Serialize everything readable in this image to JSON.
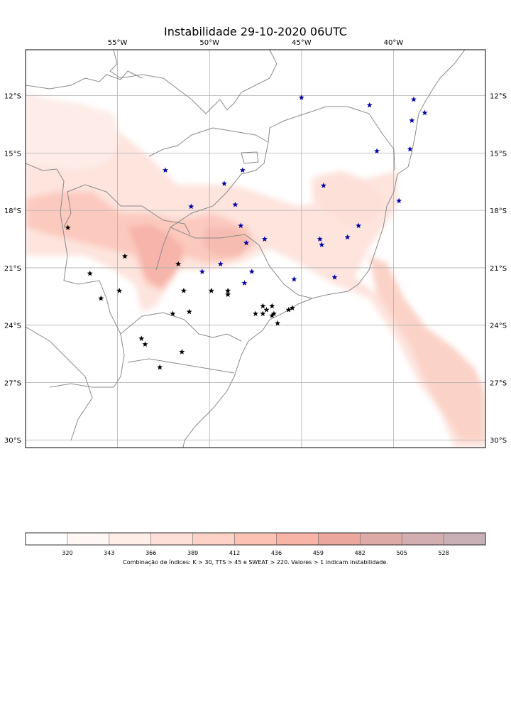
{
  "title": "Instabilidade 29-10-2020 06UTC",
  "map": {
    "lon_range": [
      -60,
      -35
    ],
    "lat_range": [
      -30.4,
      -9.6
    ],
    "lon_ticks": [
      {
        "value": -55,
        "label": "55°W"
      },
      {
        "value": -50,
        "label": "50°W"
      },
      {
        "value": -45,
        "label": "45°W"
      },
      {
        "value": -40,
        "label": "40°W"
      }
    ],
    "lat_ticks": [
      {
        "value": -12,
        "label": "12°S"
      },
      {
        "value": -15,
        "label": "15°S"
      },
      {
        "value": -18,
        "label": "18°S"
      },
      {
        "value": -21,
        "label": "21°S"
      },
      {
        "value": -24,
        "label": "24°S"
      },
      {
        "value": -27,
        "label": "27°S"
      },
      {
        "value": -30,
        "label": "30°S"
      }
    ],
    "colors": {
      "border": "#8a8a8a",
      "grid": "#b0b0b0",
      "star_blue": "#0000aa",
      "star_black": "#000000"
    },
    "stations_blue": [
      [
        -45.0,
        -12.1
      ],
      [
        -41.3,
        -12.5
      ],
      [
        -38.9,
        -12.2
      ],
      [
        -38.3,
        -12.9
      ],
      [
        -39.0,
        -13.3
      ],
      [
        -40.9,
        -14.9
      ],
      [
        -39.1,
        -14.8
      ],
      [
        -52.4,
        -15.9
      ],
      [
        -48.2,
        -15.9
      ],
      [
        -49.2,
        -16.6
      ],
      [
        -43.8,
        -16.7
      ],
      [
        -39.7,
        -17.5
      ],
      [
        -51.0,
        -17.8
      ],
      [
        -48.6,
        -17.7
      ],
      [
        -48.3,
        -18.8
      ],
      [
        -41.9,
        -18.8
      ],
      [
        -48.0,
        -19.7
      ],
      [
        -47.0,
        -19.5
      ],
      [
        -44.0,
        -19.5
      ],
      [
        -43.9,
        -19.8
      ],
      [
        -42.5,
        -19.4
      ],
      [
        -49.4,
        -20.8
      ],
      [
        -50.4,
        -21.2
      ],
      [
        -47.7,
        -21.2
      ],
      [
        -45.4,
        -21.6
      ],
      [
        -43.2,
        -21.5
      ],
      [
        -48.1,
        -21.8
      ]
    ],
    "stations_black": [
      [
        -57.7,
        -18.9
      ],
      [
        -54.6,
        -20.4
      ],
      [
        -56.5,
        -21.3
      ],
      [
        -51.7,
        -20.8
      ],
      [
        -55.9,
        -22.6
      ],
      [
        -54.9,
        -22.2
      ],
      [
        -51.4,
        -22.2
      ],
      [
        -49.9,
        -22.2
      ],
      [
        -49.0,
        -22.2
      ],
      [
        -49.0,
        -22.4
      ],
      [
        -52.0,
        -23.4
      ],
      [
        -51.1,
        -23.3
      ],
      [
        -47.5,
        -23.4
      ],
      [
        -47.1,
        -23.4
      ],
      [
        -46.9,
        -23.2
      ],
      [
        -46.6,
        -23.5
      ],
      [
        -46.5,
        -23.4
      ],
      [
        -46.6,
        -23.0
      ],
      [
        -46.3,
        -23.9
      ],
      [
        -45.7,
        -23.2
      ],
      [
        -45.5,
        -23.1
      ],
      [
        -47.1,
        -23.0
      ],
      [
        -53.7,
        -24.7
      ],
      [
        -53.5,
        -25.0
      ],
      [
        -51.5,
        -25.4
      ],
      [
        -52.7,
        -26.2
      ]
    ]
  },
  "colorbar": {
    "ticks": [
      "320",
      "343",
      "366",
      "389",
      "412",
      "436",
      "459",
      "482",
      "505",
      "528"
    ],
    "colors": [
      "#fff7f5",
      "#ffede8",
      "#ffe0d8",
      "#fed2c6",
      "#fcc3b5",
      "#f8b4a6",
      "#eba79d",
      "#deaaa8",
      "#d2aeb0",
      "#c9b0b7"
    ],
    "caption": "Combinação de índices: K > 30, TTS > 45 e SWEAT > 220. Valores > 1 indicam instabilidade."
  }
}
